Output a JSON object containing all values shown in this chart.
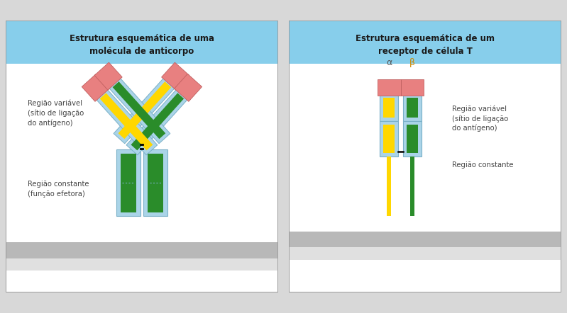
{
  "title_left": "Estrutura esquemática de uma\nmolécula de anticorpo",
  "title_right": "Estrutura esquemática de um\nreceptor de célula T",
  "header_color": "#87ceeb",
  "panel_bg": "#ffffff",
  "border_color": "#aaaaaa",
  "membrane_color": "#b8b8b8",
  "membrane_light": "#e0e0e0",
  "color_red": "#e88080",
  "color_green": "#2a8c2a",
  "color_yellow": "#FFD700",
  "color_lightblue": "#aad4e8",
  "label_variable_left": "Região variável\n(sítio de ligação\ndo antígeno)",
  "label_constant_left": "Região constante\n(função efetora)",
  "label_variable_right": "Região variável\n(sítio de ligação\ndo antígeno)",
  "label_constant_right": "Região constante",
  "label_alpha": "α",
  "label_beta": "β"
}
